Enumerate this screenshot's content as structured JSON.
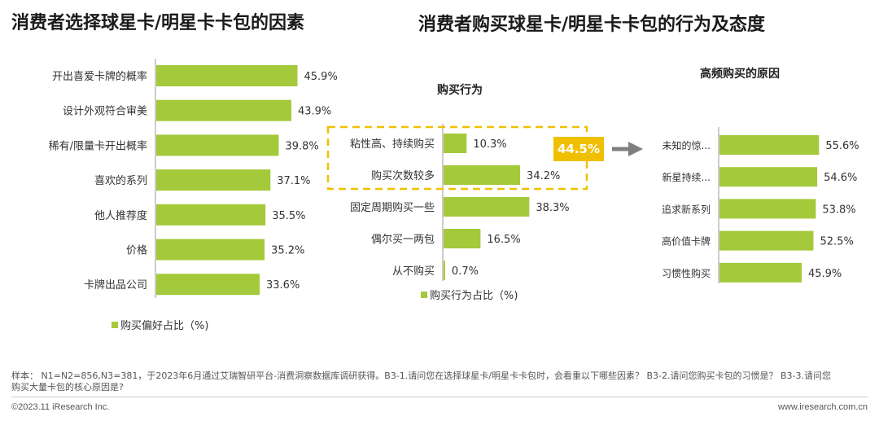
{
  "titles": {
    "left": "消费者选择球星卡/明星卡卡包的因素",
    "right": "消费者购买球星卡/明星卡卡包的行为及态度"
  },
  "colors": {
    "bar": "#a4c93a",
    "callout": "#f0c000",
    "dash": "#f0c000",
    "arrow": "#7f7f7f",
    "axis": "#999999"
  },
  "callout_value": "44.5%",
  "chart_data": [
    {
      "type": "bar",
      "orientation": "horizontal",
      "title": "",
      "categories": [
        "开出喜爱卡牌的概率",
        "设计外观符合审美",
        "稀有/限量卡开出概率",
        "喜欢的系列",
        "他人推荐度",
        "价格",
        "卡牌出品公司"
      ],
      "values": [
        45.9,
        43.9,
        39.8,
        37.1,
        35.5,
        35.2,
        33.6
      ],
      "labels": [
        "45.9%",
        "43.9%",
        "39.8%",
        "37.1%",
        "35.5%",
        "35.2%",
        "33.6%"
      ],
      "legend": "购买偏好占比（%)",
      "xlim": [
        0,
        100
      ]
    },
    {
      "type": "bar",
      "orientation": "horizontal",
      "title": "购买行为",
      "categories": [
        "粘性高、持续购买",
        "购买次数较多",
        "固定周期购买一些",
        "偶尔买一两包",
        "从不购买"
      ],
      "values": [
        10.3,
        34.2,
        38.3,
        16.5,
        0.7
      ],
      "labels": [
        "10.3%",
        "34.2%",
        "38.3%",
        "16.5%",
        "0.7%"
      ],
      "legend": "购买行为占比（%)",
      "xlim": [
        0,
        100
      ]
    },
    {
      "type": "bar",
      "orientation": "horizontal",
      "title": "高频购买的原因",
      "categories": [
        "未知的惊...",
        "新星持续...",
        "追求新系列",
        "高价值卡牌",
        "习惯性购买"
      ],
      "values": [
        55.6,
        54.6,
        53.8,
        52.5,
        45.9
      ],
      "labels": [
        "55.6%",
        "54.6%",
        "53.8%",
        "52.5%",
        "45.9%"
      ],
      "xlim": [
        0,
        100
      ]
    }
  ],
  "footnote": "样本： N1=N2=856,N3=381，于2023年6月通过艾瑞智研平台-消费洞察数据库调研获得。B3-1.请问您在选择球星卡/明星卡卡包时，会看重以下哪些因素？ B3-2.请问您购买卡包的习惯是？ B3-3.请问您购买大量卡包的核心原因是?",
  "footer": {
    "left": "©2023.11 iResearch Inc.",
    "right": "www.iresearch.com.cn"
  }
}
